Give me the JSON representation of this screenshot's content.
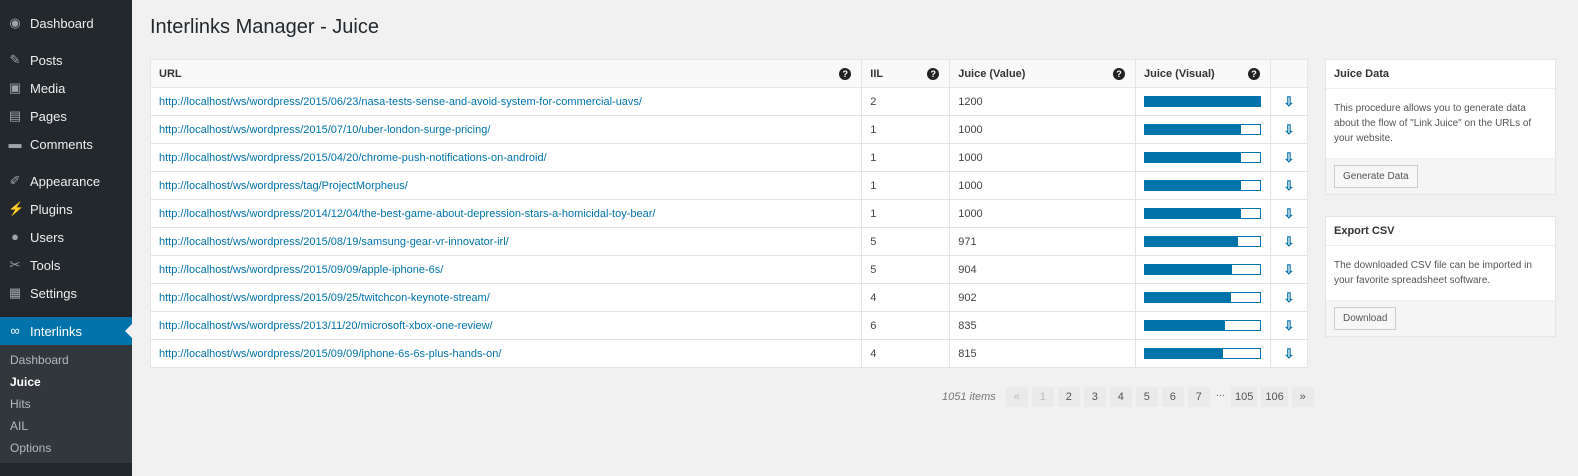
{
  "sidebar": {
    "items": [
      {
        "label": "Dashboard",
        "icon": "dashboard-icon",
        "glyph": "◉"
      },
      {
        "label": "Posts",
        "icon": "pin-icon",
        "glyph": "✎"
      },
      {
        "label": "Media",
        "icon": "media-icon",
        "glyph": "▣"
      },
      {
        "label": "Pages",
        "icon": "pages-icon",
        "glyph": "▤"
      },
      {
        "label": "Comments",
        "icon": "comment-icon",
        "glyph": "▬"
      },
      {
        "label": "Appearance",
        "icon": "brush-icon",
        "glyph": "✐"
      },
      {
        "label": "Plugins",
        "icon": "plugin-icon",
        "glyph": "⚡"
      },
      {
        "label": "Users",
        "icon": "user-icon",
        "glyph": "●"
      },
      {
        "label": "Tools",
        "icon": "wrench-icon",
        "glyph": "✂"
      },
      {
        "label": "Settings",
        "icon": "settings-icon",
        "glyph": "▦"
      },
      {
        "label": "Interlinks",
        "icon": "link-icon",
        "glyph": "∞"
      }
    ],
    "submenu": [
      "Dashboard",
      "Juice",
      "Hits",
      "AIL",
      "Options"
    ],
    "current_sub": "Juice"
  },
  "page_title": "Interlinks Manager - Juice",
  "table": {
    "headers": [
      "URL",
      "IIL",
      "Juice (Value)",
      "Juice (Visual)"
    ],
    "max_juice": 1200,
    "rows": [
      {
        "url": "http://localhost/ws/wordpress/2015/06/23/nasa-tests-sense-and-avoid-system-for-commercial-uavs/",
        "iil": "2",
        "juice": 1200
      },
      {
        "url": "http://localhost/ws/wordpress/2015/07/10/uber-london-surge-pricing/",
        "iil": "1",
        "juice": 1000
      },
      {
        "url": "http://localhost/ws/wordpress/2015/04/20/chrome-push-notifications-on-android/",
        "iil": "1",
        "juice": 1000
      },
      {
        "url": "http://localhost/ws/wordpress/tag/ProjectMorpheus/",
        "iil": "1",
        "juice": 1000
      },
      {
        "url": "http://localhost/ws/wordpress/2014/12/04/the-best-game-about-depression-stars-a-homicidal-toy-bear/",
        "iil": "1",
        "juice": 1000
      },
      {
        "url": "http://localhost/ws/wordpress/2015/08/19/samsung-gear-vr-innovator-irl/",
        "iil": "5",
        "juice": 971
      },
      {
        "url": "http://localhost/ws/wordpress/2015/09/09/apple-iphone-6s/",
        "iil": "5",
        "juice": 904
      },
      {
        "url": "http://localhost/ws/wordpress/2015/09/25/twitchcon-keynote-stream/",
        "iil": "4",
        "juice": 902
      },
      {
        "url": "http://localhost/ws/wordpress/2013/11/20/microsoft-xbox-one-review/",
        "iil": "6",
        "juice": 835
      },
      {
        "url": "http://localhost/ws/wordpress/2015/09/09/iphone-6s-6s-plus-hands-on/",
        "iil": "4",
        "juice": 815
      }
    ]
  },
  "pagination": {
    "count": "1051 items",
    "pages": [
      "«",
      "1",
      "2",
      "3",
      "4",
      "5",
      "6",
      "7",
      "...",
      "105",
      "106",
      "»"
    ],
    "disabled": [
      "«",
      "1"
    ]
  },
  "juice_data": {
    "title": "Juice Data",
    "text": "This procedure allows you to generate data about the flow of \"Link Juice\" on the URLs of your website.",
    "button": "Generate Data"
  },
  "export_csv": {
    "title": "Export CSV",
    "text": "The downloaded CSV file can be imported in your favorite spreadsheet software.",
    "button": "Download"
  },
  "colors": {
    "accent": "#0073aa",
    "sidebar": "#23282d"
  }
}
